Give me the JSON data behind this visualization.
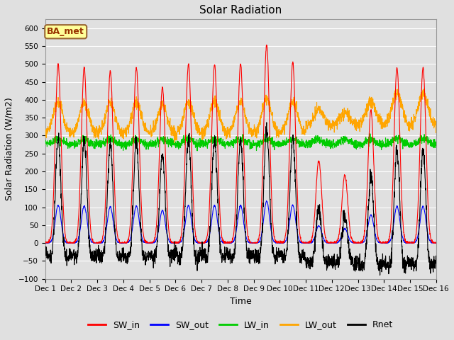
{
  "title": "Solar Radiation",
  "ylabel": "Solar Radiation (W/m2)",
  "xlabel": "Time",
  "annotation": "BA_met",
  "ylim": [
    -100,
    625
  ],
  "yticks": [
    -100,
    -50,
    0,
    50,
    100,
    150,
    200,
    250,
    300,
    350,
    400,
    450,
    500,
    550,
    600
  ],
  "num_days": 15,
  "x_tick_labels": [
    "Dec 1",
    "Dec 2",
    "Dec 3",
    "Dec 4",
    "Dec 5",
    "Dec 6",
    "Dec 7",
    "Dec 8",
    "Dec 9",
    "Dec 10",
    "Dec 11",
    "Dec 12",
    "Dec 13",
    "Dec 14",
    "Dec 15",
    "Dec 16"
  ],
  "colors": {
    "SW_in": "#FF0000",
    "SW_out": "#0000FF",
    "LW_in": "#00CC00",
    "LW_out": "#FFA500",
    "Rnet": "#000000"
  },
  "sw_in_peaks": [
    500,
    490,
    480,
    490,
    435,
    500,
    500,
    500,
    555,
    505,
    230,
    190,
    370,
    490,
    490
  ],
  "sw_out_peaks": [
    105,
    103,
    101,
    103,
    91,
    105,
    105,
    105,
    117,
    106,
    48,
    40,
    78,
    103,
    103
  ],
  "lw_in_base": 275,
  "lw_out_base": 305,
  "background_color": "#E0E0E0",
  "grid_color": "#FFFFFF",
  "annotation_bg": "#FFFF99",
  "annotation_border": "#996633",
  "figsize": [
    6.4,
    4.8
  ],
  "dpi": 100
}
